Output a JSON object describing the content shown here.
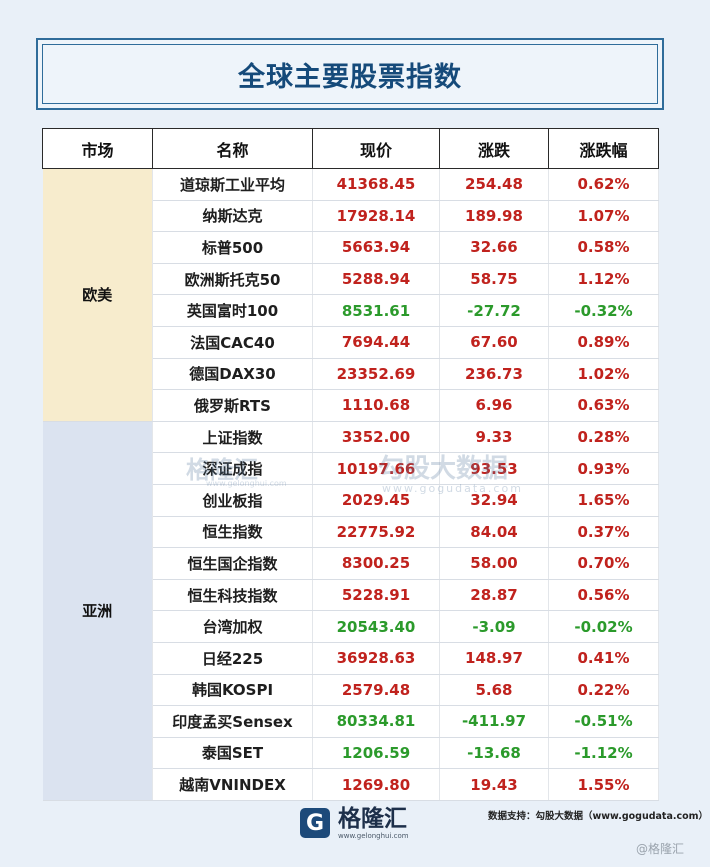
{
  "title": "全球主要股票指数",
  "headers": [
    "市场",
    "名称",
    "现价",
    "涨跌",
    "涨跌幅"
  ],
  "regions": [
    {
      "label": "欧美",
      "rows": [
        {
          "name": "道琼斯工业平均",
          "price": "41368.45",
          "change": "254.48",
          "pct": "0.62%",
          "dir": "up"
        },
        {
          "name": "纳斯达克",
          "price": "17928.14",
          "change": "189.98",
          "pct": "1.07%",
          "dir": "up"
        },
        {
          "name": "标普500",
          "price": "5663.94",
          "change": "32.66",
          "pct": "0.58%",
          "dir": "up"
        },
        {
          "name": "欧洲斯托克50",
          "price": "5288.94",
          "change": "58.75",
          "pct": "1.12%",
          "dir": "up"
        },
        {
          "name": "英国富时100",
          "price": "8531.61",
          "change": "-27.72",
          "pct": "-0.32%",
          "dir": "down"
        },
        {
          "name": "法国CAC40",
          "price": "7694.44",
          "change": "67.60",
          "pct": "0.89%",
          "dir": "up"
        },
        {
          "name": "德国DAX30",
          "price": "23352.69",
          "change": "236.73",
          "pct": "1.02%",
          "dir": "up"
        },
        {
          "name": "俄罗斯RTS",
          "price": "1110.68",
          "change": "6.96",
          "pct": "0.63%",
          "dir": "up"
        }
      ]
    },
    {
      "label": "亚洲",
      "rows": [
        {
          "name": "上证指数",
          "price": "3352.00",
          "change": "9.33",
          "pct": "0.28%",
          "dir": "up"
        },
        {
          "name": "深证成指",
          "price": "10197.66",
          "change": "93.53",
          "pct": "0.93%",
          "dir": "up"
        },
        {
          "name": "创业板指",
          "price": "2029.45",
          "change": "32.94",
          "pct": "1.65%",
          "dir": "up"
        },
        {
          "name": "恒生指数",
          "price": "22775.92",
          "change": "84.04",
          "pct": "0.37%",
          "dir": "up"
        },
        {
          "name": "恒生国企指数",
          "price": "8300.25",
          "change": "58.00",
          "pct": "0.70%",
          "dir": "up"
        },
        {
          "name": "恒生科技指数",
          "price": "5228.91",
          "change": "28.87",
          "pct": "0.56%",
          "dir": "up"
        },
        {
          "name": "台湾加权",
          "price": "20543.40",
          "change": "-3.09",
          "pct": "-0.02%",
          "dir": "down"
        },
        {
          "name": "日经225",
          "price": "36928.63",
          "change": "148.97",
          "pct": "0.41%",
          "dir": "up"
        },
        {
          "name": "韩国KOSPI",
          "price": "2579.48",
          "change": "5.68",
          "pct": "0.22%",
          "dir": "up"
        },
        {
          "name": "印度孟买Sensex",
          "price": "80334.81",
          "change": "-411.97",
          "pct": "-0.51%",
          "dir": "down"
        },
        {
          "name": "泰国SET",
          "price": "1206.59",
          "change": "-13.68",
          "pct": "-1.12%",
          "dir": "down"
        },
        {
          "name": "越南VNINDEX",
          "price": "1269.80",
          "change": "19.43",
          "pct": "1.55%",
          "dir": "up"
        }
      ]
    }
  ],
  "colors": {
    "up": "#c0221d",
    "down": "#2b9a2b",
    "title": "#154a7a",
    "eu_bg": "#f7eccd",
    "asia_bg": "#dbe3f0"
  },
  "watermark": {
    "logo": "格隆汇",
    "logo_url": "www.gelonghui.com",
    "text": "勾股大数据",
    "url": "www.gogudata.com"
  },
  "source": "数据支持：勾股大数据（www.gogudata.com）",
  "brand": {
    "icon": "G",
    "name": "格隆汇",
    "url": "www.gelonghui.com"
  },
  "corner_mark": "@格隆汇"
}
